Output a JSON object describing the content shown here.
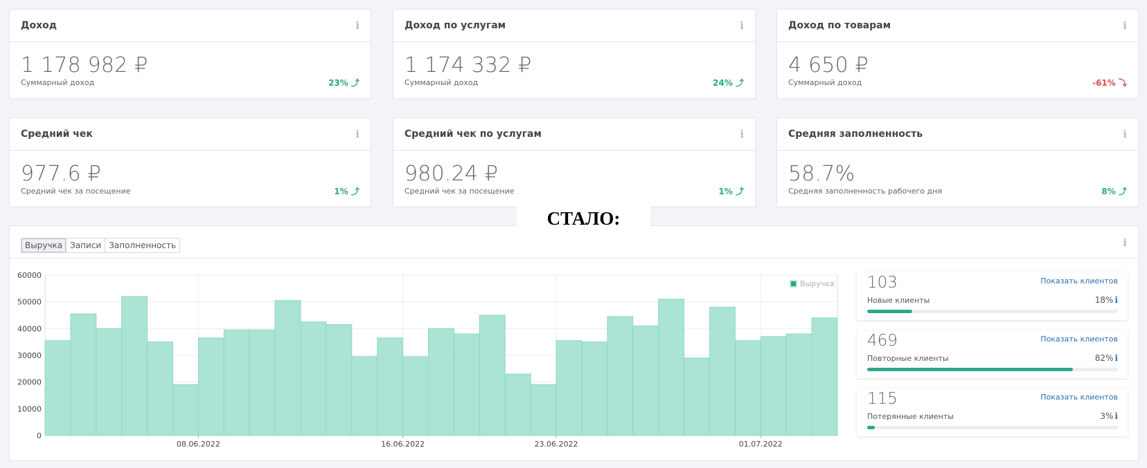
{
  "cards": [
    {
      "title": "Доход",
      "value": "1 178 982 ₽",
      "sub": "Суммарный доход",
      "pct": "23%",
      "dir": "up"
    },
    {
      "title": "Доход по услугам",
      "value": "1 174 332 ₽",
      "sub": "Суммарный доход",
      "pct": "24%",
      "dir": "up"
    },
    {
      "title": "Доход по товарам",
      "value": "4 650 ₽",
      "sub": "Суммарный доход",
      "pct": "-61%",
      "dir": "down"
    },
    {
      "title": "Средний чек",
      "value": "977.6 ₽",
      "sub": "Средний чек за посещение",
      "pct": "1%",
      "dir": "up"
    },
    {
      "title": "Средний чек по услугам",
      "value": "980.24 ₽",
      "sub": "Средний чек за посещение",
      "pct": "1%",
      "dir": "up"
    },
    {
      "title": "Средняя заполненность",
      "value": "58.7%",
      "sub": "Средняя заполненность рабочего дня",
      "pct": "8%",
      "dir": "up"
    }
  ],
  "icons": {
    "info": "i",
    "arrow_up": "⤴",
    "arrow_down": "⤵"
  },
  "overlay_text": "СТАЛО:",
  "tabs": [
    "Выручка",
    "Записи",
    "Заполненность"
  ],
  "colors": {
    "accent": "#2aa888",
    "bar": "#a6e2d2",
    "bar_stroke": "#8fd8c5",
    "negative": "#de4b52",
    "link": "#2d6fae"
  },
  "chart_data": {
    "type": "bar",
    "title": "",
    "xlabel": "",
    "ylabel": "",
    "ylim": [
      0,
      60000
    ],
    "yticks": [
      0,
      10000,
      20000,
      30000,
      40000,
      50000,
      60000
    ],
    "xtick_labels": [
      "08.06.2022",
      "16.06.2022",
      "23.06.2022",
      "01.07.2022"
    ],
    "legend": "top-right",
    "grid": true,
    "series": [
      {
        "name": "Выручка",
        "values": [
          35500,
          45500,
          40000,
          52000,
          35000,
          19000,
          36500,
          39500,
          39500,
          50500,
          42500,
          41500,
          29500,
          36500,
          29500,
          40000,
          38000,
          45000,
          23000,
          19000,
          35500,
          35000,
          44500,
          41000,
          51000,
          29000,
          48000,
          35500,
          37000,
          38000,
          44000
        ]
      }
    ]
  },
  "clients": [
    {
      "count": "103",
      "link": "Показать клиентов",
      "label": "Новые клиенты",
      "pct": "18%",
      "fill": 0.18
    },
    {
      "count": "469",
      "link": "Показать клиентов",
      "label": "Повторные клиенты",
      "pct": "82%",
      "fill": 0.82
    },
    {
      "count": "115",
      "link": "Показать клиентов",
      "label": "Потерянные клиенты",
      "pct": "3%",
      "fill": 0.03
    }
  ]
}
